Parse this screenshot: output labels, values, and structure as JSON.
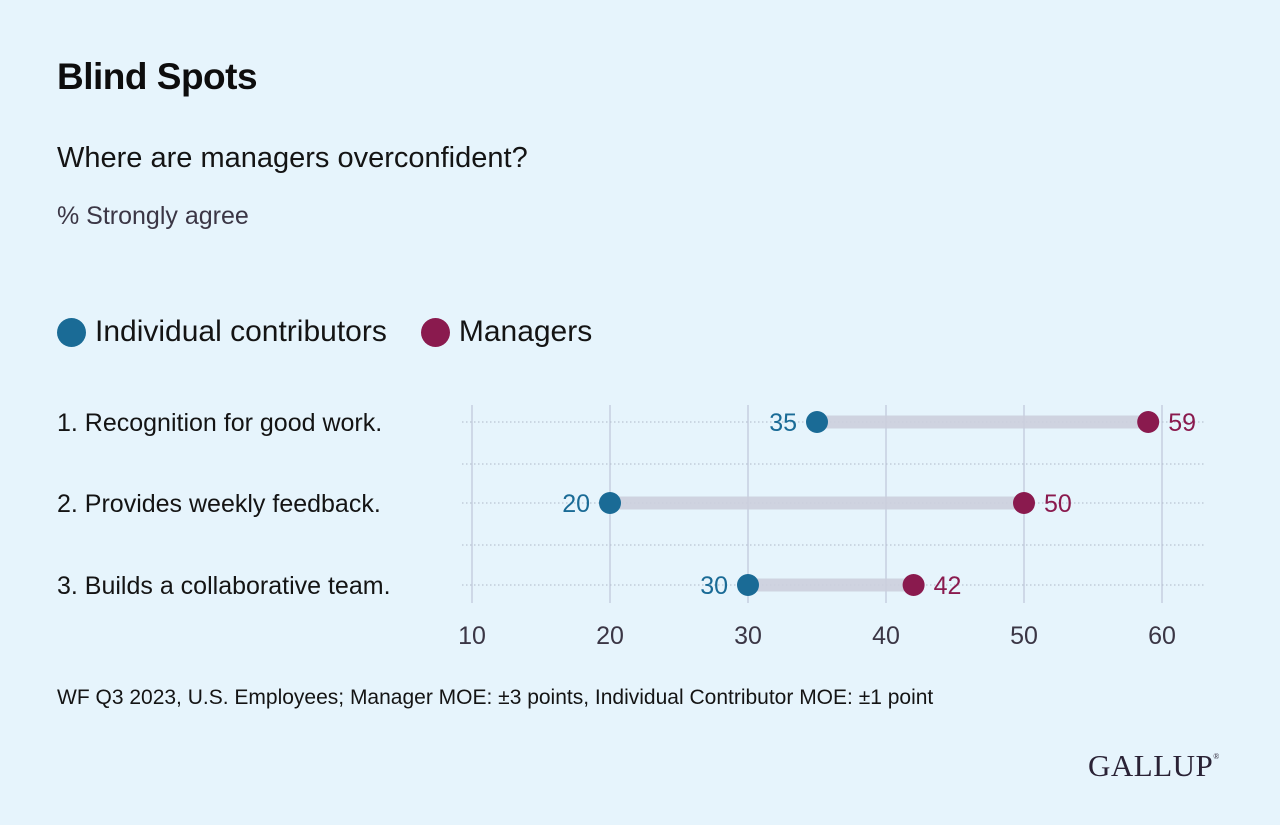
{
  "header": {
    "title": "Blind Spots",
    "subtitle": "Where are managers overconfident?",
    "unit": "% Strongly agree"
  },
  "legend": [
    {
      "name": "Individual contributors",
      "color": "#1a6b96"
    },
    {
      "name": "Managers",
      "color": "#8a1a4e"
    }
  ],
  "footer": {
    "source": "WF Q3 2023, U.S. Employees; Manager MOE: ±3 points, Individual Contributor MOE: ±1 point",
    "logo": "GALLUP",
    "logo_mark": "®"
  },
  "chart_data": {
    "type": "dumbbell",
    "title": "Blind Spots",
    "subtitle": "Where are managers overconfident?",
    "ylabel": "",
    "xlabel": "% Strongly agree",
    "categories": [
      "1. Recognition for good work.",
      "2. Provides weekly feedback.",
      "3. Builds a collaborative team."
    ],
    "series": [
      {
        "name": "Individual contributors",
        "color": "#1a6b96",
        "values": [
          35,
          20,
          30
        ]
      },
      {
        "name": "Managers",
        "color": "#8a1a4e",
        "values": [
          59,
          50,
          42
        ]
      }
    ],
    "xlim": [
      10,
      60
    ],
    "xticks": [
      10,
      20,
      30,
      40,
      50,
      60
    ],
    "grid": true,
    "legend_position": "top-left",
    "connector_color": "#cdd0dd",
    "gridline_color": "#c5cfe0"
  }
}
